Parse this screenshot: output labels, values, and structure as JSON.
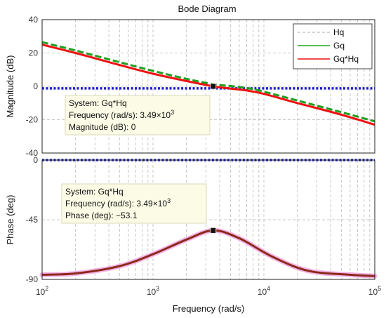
{
  "chart_data": {
    "type": "line",
    "title": "Bode Diagram",
    "xlabel": "Frequency  (rad/s)",
    "x_scale": "log",
    "xlim": [
      100,
      100000
    ],
    "x_ticks": [
      {
        "value": 100,
        "base": "10",
        "exp": "2"
      },
      {
        "value": 1000,
        "base": "10",
        "exp": "3"
      },
      {
        "value": 10000,
        "base": "10",
        "exp": "4"
      },
      {
        "value": 100000,
        "base": "10",
        "exp": "5"
      }
    ],
    "grid": true,
    "legend": {
      "placement": "top-right",
      "entries": [
        {
          "name": "Hq",
          "color": "#aaaaaa",
          "style": "dashed"
        },
        {
          "name": "Gq",
          "color": "#22aa22",
          "style": "solid"
        },
        {
          "name": "Gq*Hq",
          "color": "#ee1111",
          "style": "solid"
        }
      ]
    },
    "magnitude": {
      "ylabel": "Magnitude (dB)",
      "ylim": [
        -40,
        40
      ],
      "y_ticks": [
        "40",
        "20",
        "0",
        "-20",
        "-40"
      ],
      "x": [
        100,
        200,
        500,
        1000,
        2000,
        3490,
        5000,
        7000,
        10000,
        20000,
        50000,
        100000
      ],
      "series": [
        {
          "name": "Hq",
          "color": "#1f1fcc",
          "style": "dotted",
          "values": [
            -1.2,
            -1.2,
            -1.2,
            -1.2,
            -1.2,
            -1.2,
            -1.2,
            -1.2,
            -1.2,
            -1.2,
            -1.2,
            -1.2
          ]
        },
        {
          "name": "Gq",
          "color": "#1e9e1e",
          "style": "dashed",
          "values": [
            26.5,
            21.5,
            14.5,
            9.3,
            4.5,
            1.3,
            0.2,
            -1.0,
            -3.2,
            -8.5,
            -15.5,
            -21
          ]
        },
        {
          "name": "Gq*Hq",
          "color": "#ee1111",
          "style": "solid",
          "values": [
            25,
            20,
            12.8,
            7.6,
            3.2,
            0.0,
            -1.3,
            -2.5,
            -4.5,
            -10,
            -17,
            -23
          ]
        }
      ]
    },
    "phase": {
      "ylabel": "Phase (deg)",
      "ylim": [
        -90,
        0
      ],
      "y_ticks": [
        "0",
        "-45",
        "-90"
      ],
      "x": [
        100,
        200,
        500,
        1000,
        2000,
        3490,
        6000,
        12000,
        25000,
        60000,
        100000
      ],
      "series": [
        {
          "name": "Hq",
          "color": "#1f1fcc",
          "style": "dotted",
          "values": [
            0,
            0,
            0,
            0,
            0,
            0,
            0,
            0,
            0,
            0,
            0
          ]
        },
        {
          "name": "Gq*Hq",
          "color": "#8b2a1a",
          "style": "solid",
          "values": [
            -86.5,
            -85.5,
            -80,
            -71,
            -60,
            -53.1,
            -59,
            -73,
            -83.5,
            -86.5,
            -87.5
          ]
        }
      ]
    },
    "datatips": [
      {
        "panel": "magnitude",
        "x": 3490,
        "y": 0,
        "lines": [
          "System: Gq*Hq",
          "Frequency (rad/s): 3.49×10",
          "Magnitude (dB): 0"
        ],
        "exp": "3"
      },
      {
        "panel": "phase",
        "x": 3490,
        "y": -53.1,
        "lines": [
          "System: Gq*Hq",
          "Frequency (rad/s): 3.49×10",
          "Phase (deg): −53.1"
        ],
        "exp": "3"
      }
    ]
  }
}
